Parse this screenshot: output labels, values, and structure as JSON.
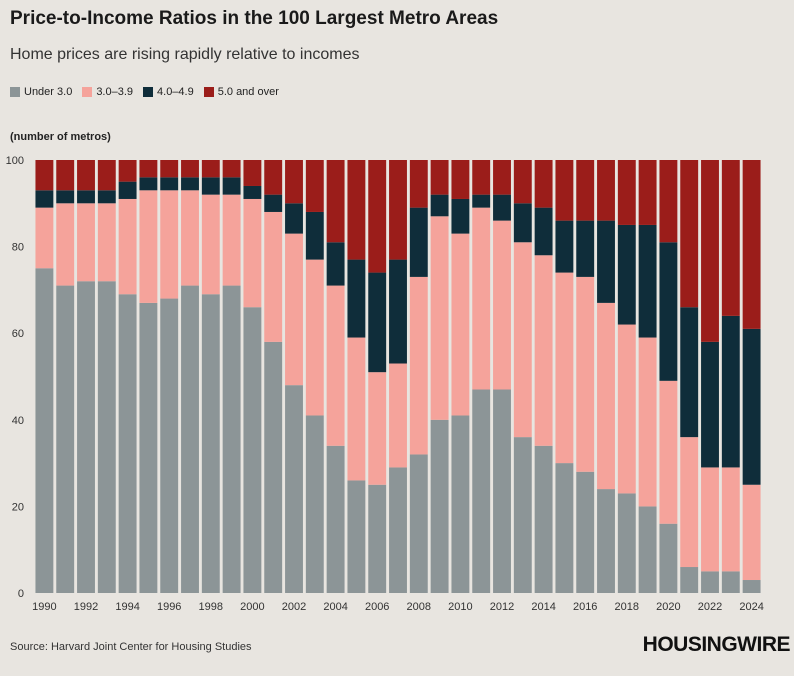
{
  "title": "Price-to-Income Ratios in the 100 Largest Metro Areas",
  "subtitle": "Home prices are rising rapidly relative to incomes",
  "y_unit_label": "(number of metros)",
  "source": "Source: Harvard Joint Center for Housing Studies",
  "brand": "HOUSINGWIRE",
  "chart_data": {
    "type": "bar",
    "stacked": true,
    "ylim": [
      0,
      100
    ],
    "yticks": [
      0,
      20,
      40,
      60,
      80,
      100
    ],
    "grid": false,
    "legend_position": "top-left",
    "x": [
      1990,
      1991,
      1992,
      1993,
      1994,
      1995,
      1996,
      1997,
      1998,
      1999,
      2000,
      2001,
      2002,
      2003,
      2004,
      2005,
      2006,
      2007,
      2008,
      2009,
      2010,
      2011,
      2012,
      2013,
      2014,
      2015,
      2016,
      2017,
      2018,
      2019,
      2020,
      2021,
      2022,
      2023,
      2024
    ],
    "xtick_labels": [
      "1990",
      "1992",
      "1994",
      "1996",
      "1998",
      "2000",
      "2002",
      "2004",
      "2006",
      "2008",
      "2010",
      "2012",
      "2014",
      "2016",
      "2018",
      "2020",
      "2022",
      "2024"
    ],
    "series": [
      {
        "name": "Under 3.0",
        "color": "#8c9597",
        "values": [
          75,
          71,
          72,
          72,
          69,
          67,
          68,
          71,
          69,
          71,
          66,
          58,
          48,
          41,
          34,
          26,
          25,
          29,
          32,
          40,
          41,
          47,
          47,
          36,
          34,
          30,
          28,
          24,
          23,
          20,
          16,
          6,
          5,
          5,
          3
        ]
      },
      {
        "name": "3.0–3.9",
        "color": "#f5a39b",
        "values": [
          14,
          19,
          18,
          18,
          22,
          26,
          25,
          22,
          23,
          21,
          25,
          30,
          35,
          36,
          37,
          33,
          26,
          24,
          41,
          47,
          42,
          42,
          39,
          45,
          44,
          44,
          45,
          43,
          39,
          39,
          33,
          30,
          24,
          24,
          22
        ]
      },
      {
        "name": "4.0–4.9",
        "color": "#0f2d3a",
        "values": [
          4,
          3,
          3,
          3,
          4,
          3,
          3,
          3,
          4,
          4,
          3,
          4,
          7,
          11,
          10,
          18,
          23,
          24,
          16,
          5,
          8,
          3,
          6,
          9,
          11,
          12,
          13,
          19,
          23,
          26,
          32,
          30,
          29,
          35,
          36
        ]
      },
      {
        "name": "5.0 and over",
        "color": "#9b1d1a",
        "values": [
          7,
          7,
          7,
          7,
          5,
          4,
          4,
          4,
          4,
          4,
          6,
          8,
          10,
          12,
          19,
          23,
          26,
          23,
          11,
          8,
          9,
          8,
          8,
          10,
          11,
          14,
          14,
          14,
          15,
          15,
          19,
          34,
          42,
          36,
          39
        ]
      }
    ]
  }
}
